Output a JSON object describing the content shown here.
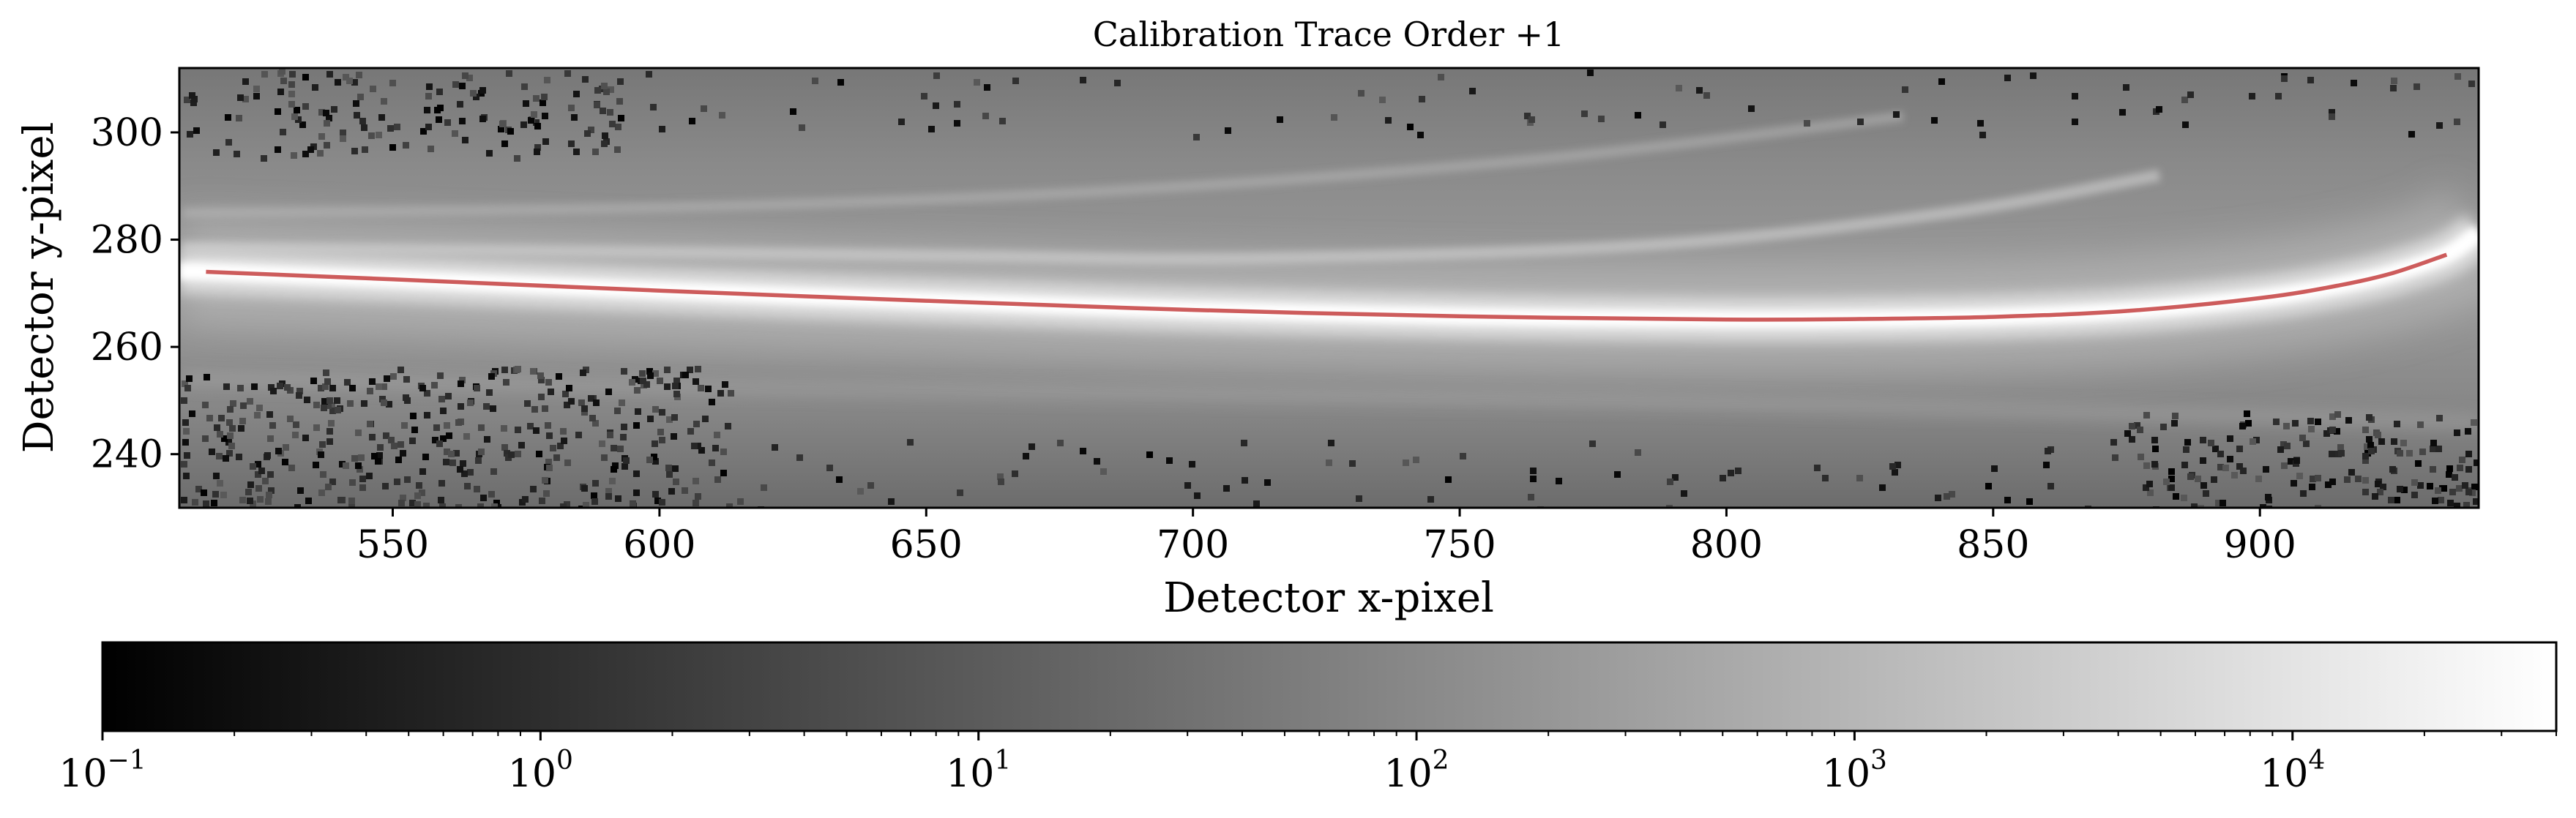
{
  "chart_data": {
    "type": "heatmap",
    "title": "Calibration Trace Order +1",
    "xlabel": "Detector x-pixel",
    "ylabel": "Detector y-pixel",
    "xlim": [
      510,
      941
    ],
    "ylim": [
      230,
      312
    ],
    "xticks": [
      550,
      600,
      650,
      700,
      750,
      800,
      850,
      900
    ],
    "yticks": [
      240,
      260,
      280,
      300
    ],
    "colormap": "gray",
    "trace_color": "#cd5c5c",
    "trace": {
      "x": [
        515,
        550,
        600,
        650,
        700,
        750,
        800,
        825,
        850,
        875,
        900,
        915,
        925,
        935
      ],
      "y": [
        274,
        272.6,
        270.5,
        268.6,
        266.9,
        265.7,
        265.1,
        265.2,
        265.6,
        266.7,
        269.1,
        271.5,
        273.8,
        277.2
      ]
    },
    "colorbar": {
      "scale": "log",
      "vmin": 0.1,
      "vmax": 40000,
      "ticks": [
        {
          "value": 0.1,
          "base": "10",
          "exp": "−1"
        },
        {
          "value": 1,
          "base": "10",
          "exp": "0"
        },
        {
          "value": 10,
          "base": "10",
          "exp": "1"
        },
        {
          "value": 100,
          "base": "10",
          "exp": "2"
        },
        {
          "value": 1000,
          "base": "10",
          "exp": "3"
        },
        {
          "value": 10000,
          "base": "10",
          "exp": "4"
        }
      ]
    }
  }
}
